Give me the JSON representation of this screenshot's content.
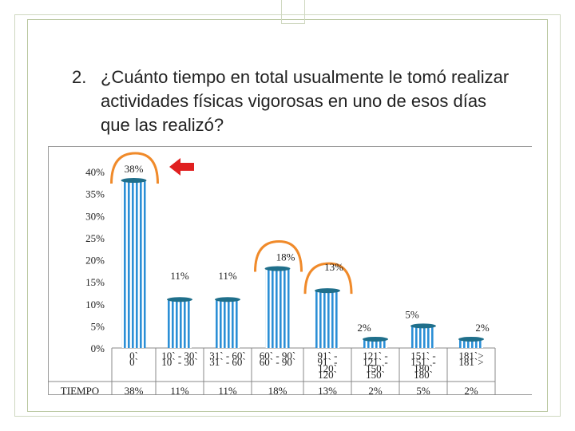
{
  "slide": {
    "question_number": "2.",
    "question_text": "¿Cuánto tiempo en total usualmente le tomó realizar actividades físicas vigorosas en uno de esos días que las realizó?"
  },
  "chart_data": {
    "type": "bar",
    "categories": [
      "0`",
      "10` - 30`",
      "31` - 60`",
      "60` - 90`",
      "91` - 120`",
      "121` - 150`",
      "151` - 180`",
      "181`>"
    ],
    "category_lines": [
      [
        "0`",
        "0`"
      ],
      [
        "10` - 30`",
        "10` - 30`"
      ],
      [
        "31` - 60`",
        "31` - 60`"
      ],
      [
        "60` - 90`",
        "60` - 90`"
      ],
      [
        "91` -",
        "91` -",
        "120`",
        "120`"
      ],
      [
        "121` -",
        "121` -",
        "150`",
        "150`"
      ],
      [
        "151` -",
        "151` -",
        "180`",
        "180`"
      ],
      [
        "181`>",
        "181`>"
      ]
    ],
    "values": [
      38,
      11,
      11,
      18,
      13,
      2,
      5,
      2
    ],
    "value_labels": [
      "38%",
      "11%",
      "11%",
      "18%",
      "13%",
      "2%",
      "5%",
      "2%"
    ],
    "ylim": [
      0,
      40
    ],
    "yticks": [
      "0%",
      "5%",
      "10%",
      "15%",
      "20%",
      "25%",
      "30%",
      "35%",
      "40%"
    ],
    "table_row_header": "TIEMPO",
    "table_row_values": [
      "38%",
      "11%",
      "11%",
      "18%",
      "13%",
      "2%",
      "5%",
      "2%"
    ],
    "highlighted": [
      0,
      3,
      4
    ],
    "colors": {
      "bar": "#2b8fd6",
      "bar_top": "#1f6f8b",
      "arrow": "#e02020",
      "highlight_ring": "#f08a2a"
    }
  }
}
